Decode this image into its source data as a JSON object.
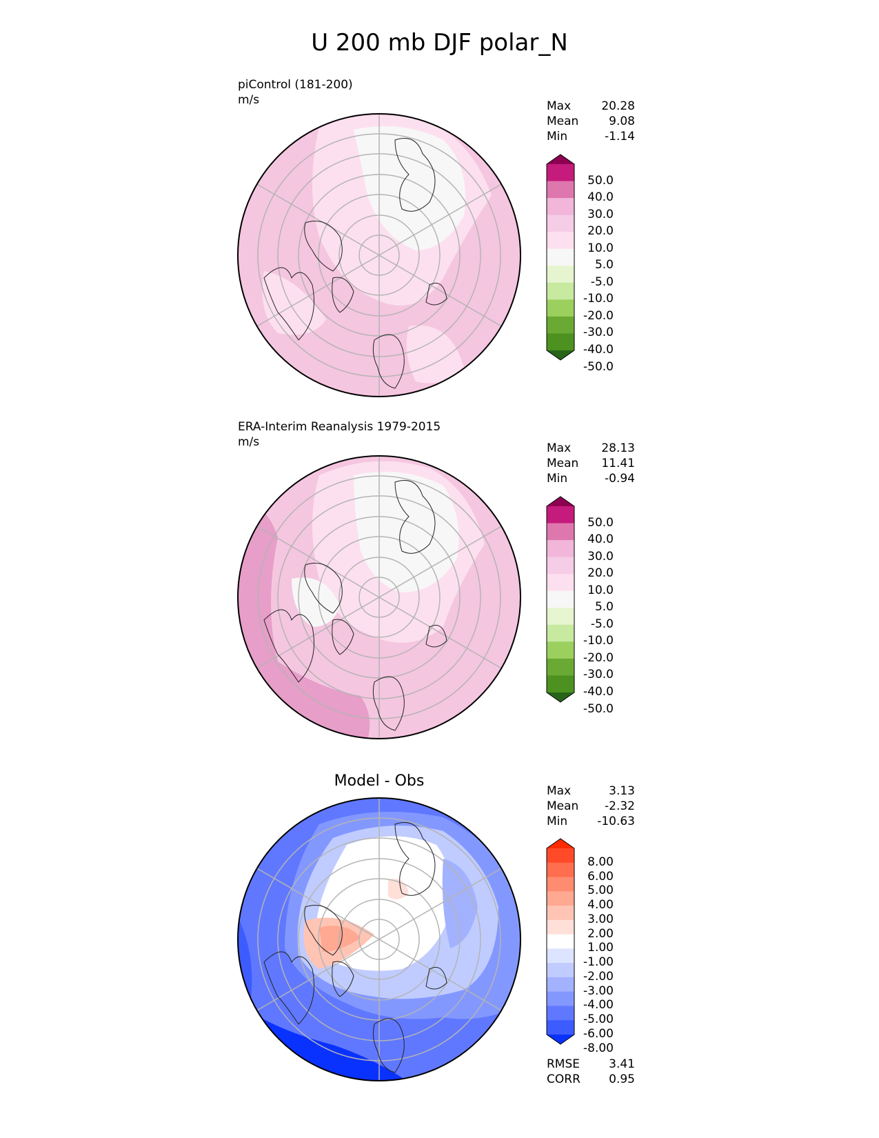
{
  "figure": {
    "title": "U 200 mb DJF polar_N"
  },
  "panels": [
    {
      "id": "model",
      "label_line1": "piControl (181-200)",
      "label_line2": "m/s",
      "stats": [
        {
          "name": "Max",
          "value": "20.28"
        },
        {
          "name": "Mean",
          "value": "9.08"
        },
        {
          "name": "Min",
          "value": "-1.14"
        }
      ],
      "colorbar": {
        "labels": [
          "50.0",
          "40.0",
          "30.0",
          "20.0",
          "10.0",
          "5.0",
          "-5.0",
          "-10.0",
          "-20.0",
          "-30.0",
          "-40.0",
          "-50.0"
        ],
        "colors": [
          "#8e0152",
          "#c51b7d",
          "#de77ae",
          "#f1b6da",
          "#f5cde6",
          "#fde0ef",
          "#f7f7f7",
          "#e6f5d0",
          "#c7e9a0",
          "#9bd05f",
          "#6aaa34",
          "#4d9221",
          "#276419"
        ]
      }
    },
    {
      "id": "obs",
      "label_line1": "ERA-Interim Reanalysis 1979-2015",
      "label_line2": "m/s",
      "stats": [
        {
          "name": "Max",
          "value": "28.13"
        },
        {
          "name": "Mean",
          "value": "11.41"
        },
        {
          "name": "Min",
          "value": "-0.94"
        }
      ],
      "colorbar": {
        "labels": [
          "50.0",
          "40.0",
          "30.0",
          "20.0",
          "10.0",
          "5.0",
          "-5.0",
          "-10.0",
          "-20.0",
          "-30.0",
          "-40.0",
          "-50.0"
        ],
        "colors": [
          "#8e0152",
          "#c51b7d",
          "#de77ae",
          "#f1b6da",
          "#f5cde6",
          "#fde0ef",
          "#f7f7f7",
          "#e6f5d0",
          "#c7e9a0",
          "#9bd05f",
          "#6aaa34",
          "#4d9221",
          "#276419"
        ]
      }
    },
    {
      "id": "diff",
      "title": "Model - Obs",
      "stats": [
        {
          "name": "Max",
          "value": "3.13"
        },
        {
          "name": "Mean",
          "value": "-2.32"
        },
        {
          "name": "Min",
          "value": "-10.63"
        }
      ],
      "colorbar": {
        "labels": [
          "8.00",
          "6.00",
          "5.00",
          "4.00",
          "3.00",
          "2.00",
          "1.00",
          "-1.00",
          "-2.00",
          "-3.00",
          "-4.00",
          "-5.00",
          "-6.00",
          "-8.00"
        ],
        "colors": [
          "#ff2a00",
          "#ff4a2a",
          "#ff6e4e",
          "#ff8c70",
          "#ffa892",
          "#ffc4b4",
          "#ffe0d8",
          "#ffffff",
          "#dde4ff",
          "#c0ccff",
          "#a2b2ff",
          "#8398ff",
          "#6078ff",
          "#3d5cff",
          "#0a32ff"
        ]
      },
      "extra_stats": [
        {
          "name": "RMSE",
          "value": "3.41"
        },
        {
          "name": "CORR",
          "value": "0.95"
        }
      ]
    }
  ]
}
